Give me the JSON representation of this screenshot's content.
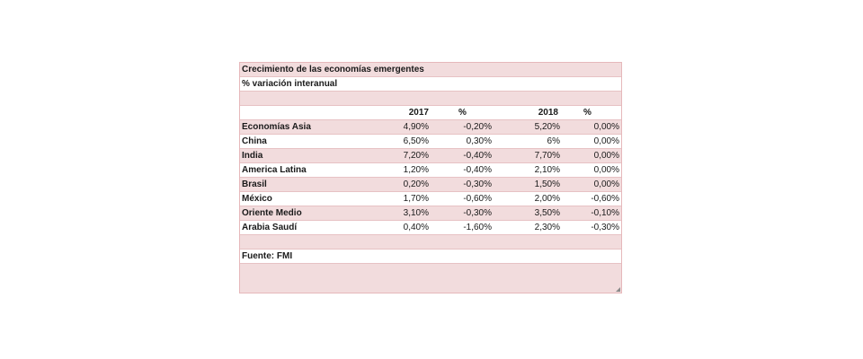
{
  "table": {
    "title": "Crecimiento de las economías emergentes",
    "subtitle": "% variación interanual",
    "headers": [
      "2017",
      "%",
      "2018",
      "%"
    ],
    "rows": [
      {
        "label": "Economías Asia",
        "v2017": "4,90%",
        "p2017": "-0,20%",
        "v2018": "5,20%",
        "p2018": "0,00%"
      },
      {
        "label": "China",
        "v2017": "6,50%",
        "p2017": "0,30%",
        "v2018": "6%",
        "p2018": "0,00%"
      },
      {
        "label": "India",
        "v2017": "7,20%",
        "p2017": "-0,40%",
        "v2018": "7,70%",
        "p2018": "0,00%"
      },
      {
        "label": "America Latina",
        "v2017": "1,20%",
        "p2017": "-0,40%",
        "v2018": "2,10%",
        "p2018": "0,00%"
      },
      {
        "label": "Brasil",
        "v2017": "0,20%",
        "p2017": "-0,30%",
        "v2018": "1,50%",
        "p2018": "0,00%"
      },
      {
        "label": "México",
        "v2017": "1,70%",
        "p2017": "-0,60%",
        "v2018": "2,00%",
        "p2018": "-0,60%"
      },
      {
        "label": "Oriente Medio",
        "v2017": "3,10%",
        "p2017": "-0,30%",
        "v2018": "3,50%",
        "p2018": "-0,10%"
      },
      {
        "label": "Arabia Saudí",
        "v2017": "0,40%",
        "p2017": "-1,60%",
        "v2018": "2,30%",
        "p2018": "-0,30%"
      }
    ],
    "source": "Fuente: FMI"
  },
  "colors": {
    "row_pink": "#f2dcdd",
    "row_white": "#ffffff",
    "border": "#e6b8bb"
  }
}
